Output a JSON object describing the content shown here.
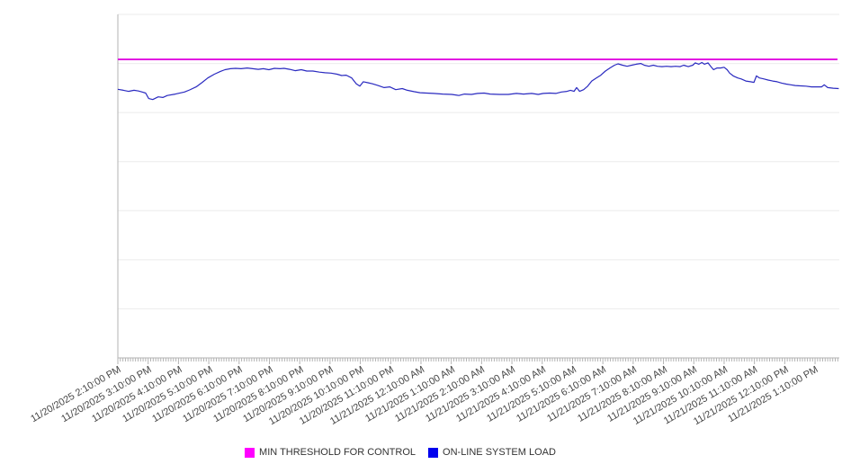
{
  "chart_data": {
    "type": "line",
    "title": "",
    "xlabel": "",
    "ylabel": "",
    "ylim": [
      0,
      100
    ],
    "y_tick_labels_shown": false,
    "grid": true,
    "gridline_count": 8,
    "x_total_minutes": 1428,
    "x_minor_tick_minutes": 5,
    "x_major_tick_minutes": 60,
    "x_tick_labels": [
      "11/20/2025 2:10:00 PM",
      "11/20/2025 3:10:00 PM",
      "11/20/2025 4:10:00 PM",
      "11/20/2025 5:10:00 PM",
      "11/20/2025 6:10:00 PM",
      "11/20/2025 7:10:00 PM",
      "11/20/2025 8:10:00 PM",
      "11/20/2025 9:10:00 PM",
      "11/20/2025 10:10:00 PM",
      "11/20/2025 11:10:00 PM",
      "11/21/2025 12:10:00 AM",
      "11/21/2025 1:10:00 AM",
      "11/21/2025 2:10:00 AM",
      "11/21/2025 3:10:00 AM",
      "11/21/2025 4:10:00 AM",
      "11/21/2025 5:10:00 AM",
      "11/21/2025 6:10:00 AM",
      "11/21/2025 7:10:00 AM",
      "11/21/2025 8:10:00 AM",
      "11/21/2025 9:10:00 AM",
      "11/21/2025 10:10:00 AM",
      "11/21/2025 11:10:00 AM",
      "11/21/2025 12:10:00 PM",
      "11/21/2025 1:10:00 PM"
    ],
    "series": [
      {
        "name": "MIN THRESHOLD FOR CONTROL",
        "kind": "constant",
        "value": 86.9,
        "color": "#e000e0",
        "legend_color": "#ff00ff"
      },
      {
        "name": "ON-LINE SYSTEM LOAD",
        "kind": "line",
        "color": "#2a2ac0",
        "legend_color": "#0000ee",
        "points": [
          [
            0,
            78.2
          ],
          [
            11,
            77.9
          ],
          [
            21,
            77.6
          ],
          [
            32,
            77.9
          ],
          [
            41,
            77.7
          ],
          [
            48,
            77.4
          ],
          [
            55,
            77.1
          ],
          [
            61,
            75.5
          ],
          [
            69,
            75.2
          ],
          [
            80,
            76.0
          ],
          [
            89,
            75.8
          ],
          [
            98,
            76.4
          ],
          [
            114,
            76.8
          ],
          [
            132,
            77.4
          ],
          [
            142,
            78.0
          ],
          [
            155,
            78.9
          ],
          [
            167,
            80.2
          ],
          [
            178,
            81.5
          ],
          [
            191,
            82.6
          ],
          [
            203,
            83.4
          ],
          [
            212,
            83.9
          ],
          [
            223,
            84.2
          ],
          [
            233,
            84.3
          ],
          [
            244,
            84.2
          ],
          [
            256,
            84.4
          ],
          [
            267,
            84.2
          ],
          [
            278,
            84.0
          ],
          [
            288,
            84.2
          ],
          [
            299,
            83.9
          ],
          [
            310,
            84.3
          ],
          [
            321,
            84.2
          ],
          [
            329,
            84.3
          ],
          [
            340,
            84.0
          ],
          [
            351,
            83.6
          ],
          [
            363,
            83.9
          ],
          [
            374,
            83.5
          ],
          [
            386,
            83.5
          ],
          [
            399,
            83.2
          ],
          [
            410,
            83.0
          ],
          [
            422,
            82.9
          ],
          [
            434,
            82.6
          ],
          [
            443,
            82.2
          ],
          [
            452,
            82.3
          ],
          [
            463,
            81.5
          ],
          [
            472,
            79.8
          ],
          [
            479,
            79.1
          ],
          [
            486,
            80.4
          ],
          [
            495,
            80.1
          ],
          [
            504,
            79.8
          ],
          [
            515,
            79.3
          ],
          [
            527,
            78.7
          ],
          [
            538,
            78.9
          ],
          [
            550,
            78.1
          ],
          [
            563,
            78.4
          ],
          [
            573,
            77.9
          ],
          [
            586,
            77.5
          ],
          [
            598,
            77.2
          ],
          [
            611,
            77.1
          ],
          [
            625,
            77.0
          ],
          [
            643,
            76.8
          ],
          [
            661,
            76.7
          ],
          [
            675,
            76.4
          ],
          [
            686,
            76.8
          ],
          [
            700,
            76.7
          ],
          [
            712,
            77.0
          ],
          [
            725,
            77.1
          ],
          [
            737,
            76.8
          ],
          [
            755,
            76.7
          ],
          [
            773,
            76.7
          ],
          [
            789,
            77.0
          ],
          [
            803,
            76.8
          ],
          [
            819,
            77.0
          ],
          [
            832,
            76.7
          ],
          [
            842,
            77.0
          ],
          [
            855,
            77.1
          ],
          [
            867,
            77.0
          ],
          [
            878,
            77.4
          ],
          [
            889,
            77.6
          ],
          [
            896,
            77.9
          ],
          [
            903,
            77.6
          ],
          [
            908,
            78.7
          ],
          [
            914,
            77.6
          ],
          [
            922,
            78.1
          ],
          [
            930,
            79.1
          ],
          [
            938,
            80.6
          ],
          [
            947,
            81.5
          ],
          [
            956,
            82.3
          ],
          [
            965,
            83.5
          ],
          [
            974,
            84.4
          ],
          [
            983,
            85.2
          ],
          [
            990,
            85.6
          ],
          [
            999,
            85.2
          ],
          [
            1008,
            84.9
          ],
          [
            1017,
            85.2
          ],
          [
            1026,
            85.5
          ],
          [
            1035,
            85.7
          ],
          [
            1042,
            85.2
          ],
          [
            1051,
            84.9
          ],
          [
            1060,
            85.2
          ],
          [
            1068,
            84.9
          ],
          [
            1077,
            84.8
          ],
          [
            1086,
            84.9
          ],
          [
            1095,
            84.8
          ],
          [
            1104,
            84.9
          ],
          [
            1113,
            84.8
          ],
          [
            1120,
            85.2
          ],
          [
            1129,
            84.8
          ],
          [
            1138,
            85.2
          ],
          [
            1143,
            85.9
          ],
          [
            1150,
            85.5
          ],
          [
            1156,
            86.0
          ],
          [
            1161,
            85.5
          ],
          [
            1168,
            85.9
          ],
          [
            1174,
            84.8
          ],
          [
            1179,
            83.9
          ],
          [
            1186,
            84.4
          ],
          [
            1193,
            84.4
          ],
          [
            1200,
            84.6
          ],
          [
            1206,
            83.9
          ],
          [
            1211,
            82.9
          ],
          [
            1218,
            82.1
          ],
          [
            1227,
            81.5
          ],
          [
            1234,
            81.2
          ],
          [
            1243,
            80.6
          ],
          [
            1252,
            80.4
          ],
          [
            1259,
            80.2
          ],
          [
            1264,
            82.1
          ],
          [
            1270,
            81.5
          ],
          [
            1279,
            81.2
          ],
          [
            1287,
            80.9
          ],
          [
            1296,
            80.6
          ],
          [
            1305,
            80.4
          ],
          [
            1314,
            80.0
          ],
          [
            1323,
            79.7
          ],
          [
            1332,
            79.5
          ],
          [
            1341,
            79.3
          ],
          [
            1352,
            79.2
          ],
          [
            1362,
            79.1
          ],
          [
            1373,
            78.9
          ],
          [
            1384,
            78.9
          ],
          [
            1393,
            78.9
          ],
          [
            1398,
            79.5
          ],
          [
            1405,
            78.7
          ],
          [
            1416,
            78.5
          ],
          [
            1427,
            78.4
          ]
        ]
      }
    ],
    "legend_position": "bottom-center",
    "colors": {
      "gridline": "#ebebeb",
      "axis_line": "#b3b3b3",
      "tick": "#b3b3b3",
      "label_text": "#454545",
      "legend_text": "#333333",
      "background": "#ffffff"
    }
  }
}
